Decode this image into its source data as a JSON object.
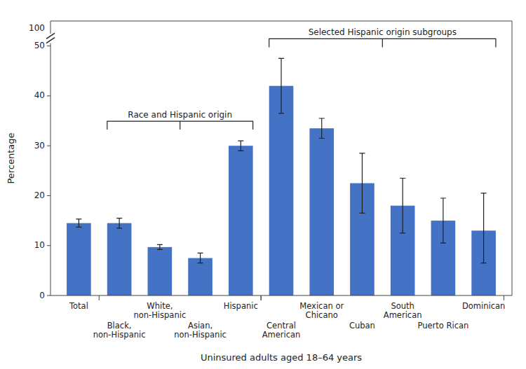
{
  "chart_data": {
    "type": "bar",
    "categories": [
      "Total",
      "Black,\nnon-Hispanic",
      "White,\nnon-Hispanic",
      "Asian,\nnon-Hispanic",
      "Hispanic",
      "Central\nAmerican",
      "Mexican or\nChicano",
      "Cuban",
      "South\nAmerican",
      "Puerto Rican",
      "Dominican"
    ],
    "values": [
      14.5,
      14.5,
      9.7,
      7.5,
      30.0,
      42.0,
      33.5,
      22.5,
      18.0,
      15.0,
      13.0
    ],
    "errors_low": [
      0.8,
      1.0,
      0.5,
      1.0,
      1.0,
      5.5,
      2.0,
      6.0,
      5.5,
      4.5,
      6.5
    ],
    "errors_high": [
      0.8,
      1.0,
      0.5,
      1.0,
      1.0,
      5.5,
      2.0,
      6.0,
      5.5,
      4.5,
      7.5
    ],
    "color": "#4472C4",
    "ylabel": "Percentage",
    "xlabel": "Uninsured adults aged 18–64 years",
    "ylim": [
      0,
      55
    ],
    "yticks": [
      0,
      10,
      20,
      30,
      40,
      50
    ],
    "grid": false,
    "annotations": [
      {
        "text": "100"
      },
      {
        "text": "Race and Hispanic origin",
        "from": "Black,\nnon-Hispanic",
        "to": "Hispanic"
      },
      {
        "text": "Selected Hispanic origin subgroups",
        "from": "Central\nAmerican",
        "to": "Dominican"
      }
    ]
  }
}
